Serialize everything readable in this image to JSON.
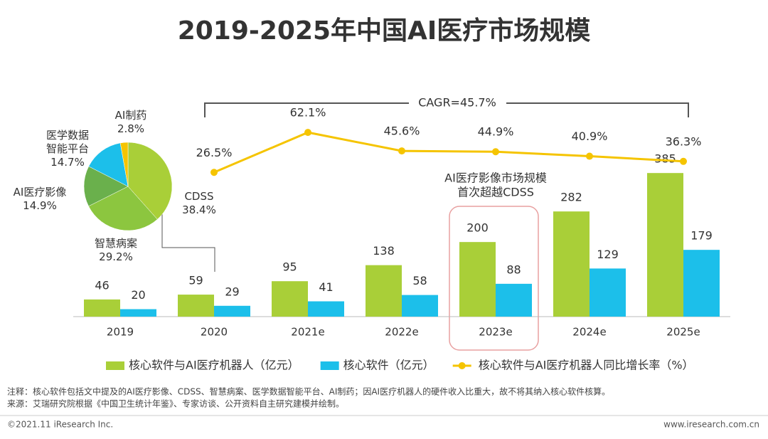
{
  "chart_data": [
    {
      "type": "bar",
      "title": "2019-2025年中国AI医疗市场规模",
      "categories": [
        "2019",
        "2020",
        "2021e",
        "2022e",
        "2023e",
        "2024e",
        "2025e"
      ],
      "series": [
        {
          "name": "核心软件与AI医疗机器人（亿元）",
          "color": "#a9cf38",
          "values": [
            46,
            59,
            95,
            138,
            200,
            282,
            385
          ]
        },
        {
          "name": "核心软件（亿元）",
          "color": "#1cbfea",
          "values": [
            20,
            29,
            41,
            58,
            88,
            129,
            179
          ]
        },
        {
          "name": "核心软件与AI医疗机器人同比增长率（%）",
          "color": "#f5c400",
          "type": "line",
          "axis": "y2",
          "values": [
            null,
            26.5,
            62.1,
            45.6,
            44.9,
            40.9,
            36.3
          ],
          "value_labels": [
            null,
            "26.5%",
            "62.1%",
            "45.6%",
            "44.9%",
            "40.9%",
            "36.3%"
          ]
        }
      ],
      "ylim": [
        0,
        620
      ],
      "y2lim": [
        -102,
        104
      ],
      "annotations": [
        "CAGR=45.7%",
        "AI医疗影像市场规模",
        "首次超越CDSS"
      ]
    },
    {
      "type": "pie",
      "categories": [
        "CDSS",
        "智慧病案",
        "AI医疗影像",
        "医学数据\n智能平台",
        "AI制药"
      ],
      "values": [
        38.4,
        29.2,
        14.9,
        14.7,
        2.8
      ],
      "value_labels": [
        "38.4%",
        "29.2%",
        "14.9%",
        "14.7%",
        "2.8%"
      ],
      "colors": [
        "#a9cf38",
        "#8cc63f",
        "#6ab04c",
        "#1cbfea",
        "#f5c400"
      ]
    }
  ],
  "notes": [
    "注释：核心软件包括文中提及的AI医疗影像、CDSS、智慧病案、医学数据智能平台、AI制药；因AI医疗机器人的硬件收入比重大，故不将其纳入核心软件核算。",
    "来源：艾瑞研究院根据《中国卫生统计年鉴》、专家访谈、公开资料自主研究建模并绘制。"
  ],
  "footer": {
    "copyright": "©2021.11 iResearch Inc.",
    "website": "www.iresearch.com.cn"
  }
}
